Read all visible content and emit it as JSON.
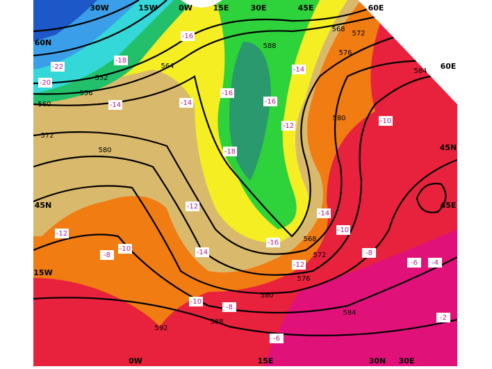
{
  "map": {
    "grid_labels": [
      "30W",
      "15W",
      "0W",
      "15E",
      "30E",
      "45E",
      "60E",
      "60N",
      "60E",
      "45N",
      "45N",
      "45E",
      "15W",
      "0W",
      "15E",
      "30N",
      "30E"
    ],
    "contour_labels": [
      "552",
      "556",
      "560",
      "564",
      "568",
      "572",
      "576",
      "580",
      "584",
      "588",
      "572",
      "580",
      "568",
      "572",
      "576",
      "580",
      "584",
      "588",
      "592"
    ],
    "temperature_labels": [
      "-22",
      "-20",
      "-18",
      "-16",
      "-14",
      "-14",
      "-16",
      "-16",
      "-14",
      "-12",
      "-18",
      "-10",
      "-12",
      "-12",
      "-8",
      "-10",
      "-14",
      "-10",
      "-16",
      "-14",
      "-12",
      "-8",
      "-6",
      "-4",
      "-10",
      "-8",
      "-6",
      "-2"
    ]
  }
}
